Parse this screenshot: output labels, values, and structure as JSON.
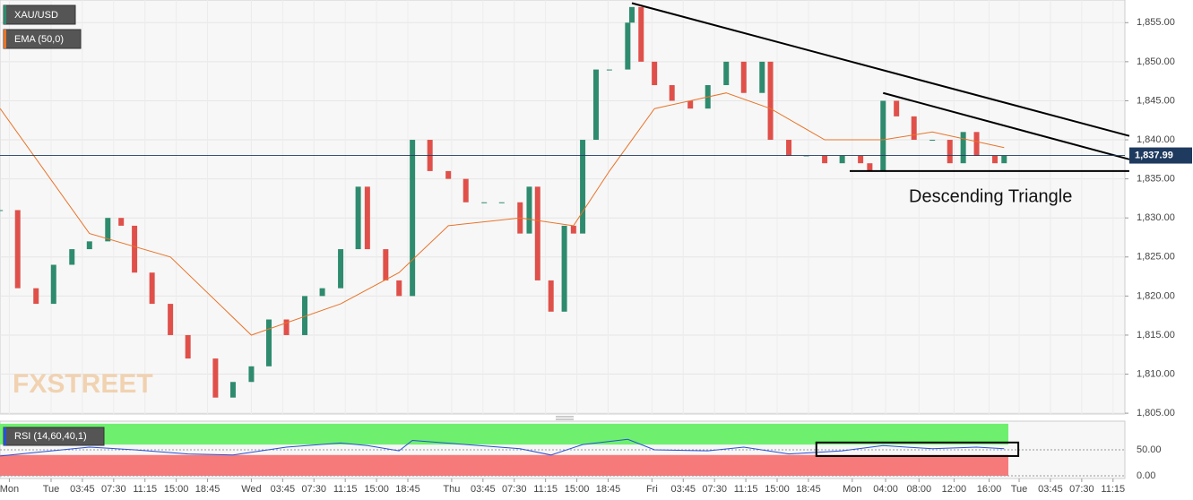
{
  "chart_data": [
    {
      "type": "candlestick",
      "legend": [
        "XAU/USD",
        "EMA (50,0)"
      ],
      "watermark": "FXSTREET",
      "x": [
        -6.1,
        -4.0,
        -1.8,
        0.3,
        2.5,
        4.6,
        6.8,
        8.4,
        10.0,
        12.1,
        14.3,
        16.4,
        19.7,
        21.8,
        24.0,
        26.1,
        28.2,
        30.4,
        32.5,
        34.7,
        36.8,
        37.9,
        40.1,
        41.7,
        43.3,
        45.4,
        47.6,
        49.7,
        51.9,
        54.0,
        56.2,
        57.3,
        58.3,
        59.9,
        61.5,
        62.6,
        63.7,
        65.3,
        66.9,
        69.1,
        69.6,
        70.7,
        72.3,
        74.4,
        76.6,
        78.7,
        80.9,
        83.0,
        85.2,
        86.2,
        88.4,
        90.5,
        92.7,
        94.8,
        97.0,
        98.1,
        99.7,
        101.3,
        103.4,
        105.6,
        107.7,
        109.3,
        110.9,
        113.1,
        114.2
      ],
      "close": [
        1831,
        1821,
        1819,
        1824,
        1826,
        1827,
        1830,
        1829,
        1823,
        1819,
        1815,
        1812,
        1807,
        1809,
        1811,
        1817,
        1815,
        1820,
        1821,
        1826,
        1834,
        1826,
        1822,
        1820,
        1840,
        1836,
        1835,
        1832,
        1832,
        1832,
        1828,
        1834,
        1822,
        1818,
        1829,
        1828,
        1840,
        1849,
        1849,
        1855,
        1857,
        1850,
        1847,
        1845,
        1844,
        1847,
        1850,
        1846,
        1850,
        1840,
        1838,
        1838,
        1837,
        1838,
        1837,
        1836,
        1845,
        1843,
        1840,
        1840,
        1837,
        1841,
        1838,
        1837,
        1838
      ],
      "up_color": "#2e8b6e",
      "down_color": "#e0504a",
      "ema": {
        "color": "#e8742a",
        "x": [
          -6.1,
          4.6,
          14.3,
          24.0,
          34.7,
          41.7,
          47.6,
          56.2,
          62.6,
          66.9,
          72.3,
          80.9,
          86.2,
          92.7,
          99.7,
          105.6,
          114.2
        ],
        "values": [
          1844,
          1828,
          1825,
          1815,
          1819,
          1823,
          1829,
          1830,
          1829,
          1836,
          1844,
          1846,
          1844,
          1840,
          1840,
          1841,
          1839
        ]
      },
      "trendlines": [
        {
          "x": [
            69.6,
            129.2
          ],
          "y": [
            1857.5,
            1840.5
          ]
        },
        {
          "x": [
            99.7,
            129.2
          ],
          "y": [
            1846,
            1837.5
          ]
        },
        {
          "x": [
            95.7,
            129.2
          ],
          "y": [
            1836,
            1836
          ]
        }
      ],
      "annotation": "Descending Triangle",
      "last_price": {
        "value": 1837.99,
        "label": "1,837.99"
      },
      "xlim": [
        -6.12,
        128.67
      ],
      "ylim": [
        1804.9,
        1857.9
      ],
      "yticks": [
        {
          "value": 1805,
          "label": "1,805.00"
        },
        {
          "value": 1810,
          "label": "1,810.00"
        },
        {
          "value": 1815,
          "label": "1,815.00"
        },
        {
          "value": 1820,
          "label": "1,820.00"
        },
        {
          "value": 1825,
          "label": "1,825.00"
        },
        {
          "value": 1830,
          "label": "1,830.00"
        },
        {
          "value": 1835,
          "label": "1,835.00"
        },
        {
          "value": 1840,
          "label": "1,840.00"
        },
        {
          "value": 1845,
          "label": "1,845.00"
        },
        {
          "value": 1850,
          "label": "1,850.00"
        },
        {
          "value": 1855,
          "label": "1,855.00"
        }
      ],
      "xticks": [
        {
          "value": -5,
          "label": "Mon"
        },
        {
          "value": 0,
          "label": "Tue"
        },
        {
          "value": 3.75,
          "label": "03:45"
        },
        {
          "value": 7.5,
          "label": "07:30"
        },
        {
          "value": 11.25,
          "label": "11:15"
        },
        {
          "value": 15,
          "label": "15:00"
        },
        {
          "value": 18.75,
          "label": "18:45"
        },
        {
          "value": 24,
          "label": "Wed"
        },
        {
          "value": 27.75,
          "label": "03:45"
        },
        {
          "value": 31.5,
          "label": "07:30"
        },
        {
          "value": 35.25,
          "label": "11:15"
        },
        {
          "value": 39,
          "label": "15:00"
        },
        {
          "value": 42.75,
          "label": "18:45"
        },
        {
          "value": 48,
          "label": "Thu"
        },
        {
          "value": 51.75,
          "label": "03:45"
        },
        {
          "value": 55.5,
          "label": "07:30"
        },
        {
          "value": 59.25,
          "label": "11:15"
        },
        {
          "value": 63,
          "label": "15:00"
        },
        {
          "value": 66.75,
          "label": "18:45"
        },
        {
          "value": 72,
          "label": "Fri"
        },
        {
          "value": 75.75,
          "label": "03:45"
        },
        {
          "value": 79.5,
          "label": "07:30"
        },
        {
          "value": 83.25,
          "label": "11:15"
        },
        {
          "value": 87,
          "label": "15:00"
        },
        {
          "value": 90.75,
          "label": "18:45"
        },
        {
          "value": 96,
          "label": "Mon"
        },
        {
          "value": 100,
          "label": "04:00"
        },
        {
          "value": 104,
          "label": "08:00"
        },
        {
          "value": 108.2,
          "label": "12:00"
        },
        {
          "value": 112.4,
          "label": "16:00"
        },
        {
          "value": 116,
          "label": "Tue"
        },
        {
          "value": 119.75,
          "label": "03:45"
        },
        {
          "value": 123.5,
          "label": "07:30"
        },
        {
          "value": 127.25,
          "label": "11:15"
        }
      ],
      "grid": true
    },
    {
      "type": "rsi",
      "legend": "RSI (14,60,40,1)",
      "color": "#2a4fd6",
      "upper": 60,
      "lower": 40,
      "top": 100,
      "upper_color": "#6ef06e",
      "lower_color": "#f77a7a",
      "x": [
        -6.1,
        -1.8,
        4.6,
        10,
        16.4,
        21.8,
        28.2,
        34.7,
        37.9,
        41.7,
        43.3,
        49.7,
        56.2,
        59.9,
        63.7,
        69.1,
        72.3,
        78.7,
        83,
        88.4,
        94.8,
        99.7,
        105.6,
        110.9,
        114.2
      ],
      "values": [
        38,
        45,
        55,
        50,
        42,
        40,
        55,
        63,
        58,
        48,
        68,
        60,
        52,
        40,
        60,
        70,
        50,
        48,
        55,
        42,
        48,
        58,
        52,
        55,
        52
      ],
      "box": {
        "x": [
          91.7,
          115.9
        ],
        "y": [
          38,
          64
        ]
      },
      "xlim": [
        -6.12,
        128.67
      ],
      "ylim": [
        0,
        105
      ],
      "yticks": [
        {
          "value": 0,
          "label": "0.00"
        },
        {
          "value": 50,
          "label": "50.00"
        }
      ]
    }
  ]
}
